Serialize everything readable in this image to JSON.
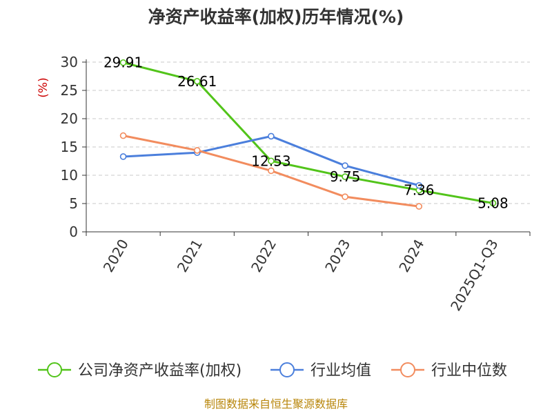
{
  "chart_data": {
    "type": "line",
    "title": "净资产收益率(加权)历年情况(%)",
    "ylabel": "(%)",
    "xlabel": "",
    "categories": [
      "2020",
      "2021",
      "2022",
      "2023",
      "2024",
      "2025Q1-Q3"
    ],
    "ylim": [
      0,
      30
    ],
    "yticks": [
      0,
      5,
      10,
      15,
      20,
      25,
      30
    ],
    "grid": true,
    "legend_position": "bottom",
    "series": [
      {
        "name": "公司净资产收益率(加权)",
        "color": "#52c41a",
        "values": [
          29.91,
          26.61,
          12.53,
          9.75,
          7.36,
          5.08
        ],
        "labels": [
          "29.91",
          "26.61",
          "12.53",
          "9.75",
          "7.36",
          "5.08"
        ]
      },
      {
        "name": "行业均值",
        "color": "#4b7fdc",
        "values": [
          13.3,
          14.0,
          16.9,
          11.7,
          8.2,
          null
        ]
      },
      {
        "name": "行业中位数",
        "color": "#f28c5e",
        "values": [
          17.0,
          14.4,
          10.8,
          6.2,
          4.5,
          null
        ]
      }
    ],
    "source": "制图数据来自恒生聚源数据库"
  }
}
